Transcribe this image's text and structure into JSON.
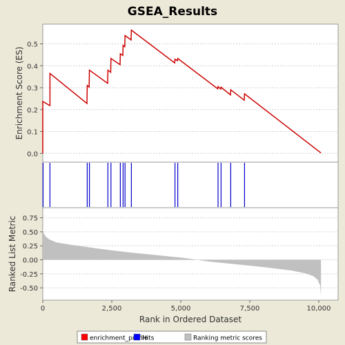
{
  "title": "GSEA_Results",
  "chart_data": [
    {
      "type": "line",
      "name": "enrichment_profile_panel",
      "ylabel": "Enrichment Score (ES)",
      "ylim": [
        -0.04,
        0.59
      ],
      "yticks": [
        "0.0",
        "0.1",
        "0.2",
        "0.3",
        "0.4",
        "0.5"
      ],
      "ytick_values": [
        0.0,
        0.1,
        0.2,
        0.3,
        0.4,
        0.5
      ],
      "color": "#cc0000",
      "points": [
        [
          0,
          0.0
        ],
        [
          0,
          0.237
        ],
        [
          260,
          0.218
        ],
        [
          260,
          0.365
        ],
        [
          1600,
          0.228
        ],
        [
          1610,
          0.31
        ],
        [
          1680,
          0.303
        ],
        [
          1690,
          0.38
        ],
        [
          2350,
          0.32
        ],
        [
          2360,
          0.38
        ],
        [
          2460,
          0.37
        ],
        [
          2470,
          0.433
        ],
        [
          2800,
          0.405
        ],
        [
          2810,
          0.455
        ],
        [
          2900,
          0.447
        ],
        [
          2910,
          0.493
        ],
        [
          2970,
          0.487
        ],
        [
          2980,
          0.538
        ],
        [
          3200,
          0.518
        ],
        [
          3210,
          0.563
        ],
        [
          4780,
          0.413
        ],
        [
          4790,
          0.43
        ],
        [
          4880,
          0.423
        ],
        [
          4890,
          0.433
        ],
        [
          6340,
          0.295
        ],
        [
          6350,
          0.305
        ],
        [
          6450,
          0.294
        ],
        [
          6460,
          0.302
        ],
        [
          6800,
          0.267
        ],
        [
          6810,
          0.29
        ],
        [
          7300,
          0.243
        ],
        [
          7310,
          0.272
        ],
        [
          10080,
          0.002
        ]
      ]
    },
    {
      "type": "hits",
      "name": "hits_panel",
      "color": "#0000cc",
      "hits": [
        10,
        260,
        1610,
        1690,
        2360,
        2470,
        2810,
        2910,
        2980,
        3210,
        4790,
        4890,
        6350,
        6460,
        6810,
        7310
      ]
    },
    {
      "type": "area",
      "name": "ranked_list_metric_panel",
      "ylabel": "Ranked List Metric",
      "xlabel": "Rank in Ordered Dataset",
      "xlim": [
        0,
        10700
      ],
      "ylim": [
        -0.72,
        0.93
      ],
      "xticks": [
        "0",
        "2,500",
        "5,000",
        "7,500",
        "10,000"
      ],
      "xtick_values": [
        0,
        2500,
        5000,
        7500,
        10000
      ],
      "yticks": [
        "0.75",
        "0.50",
        "0.25",
        "0.00",
        "-0.25",
        "-0.50"
      ],
      "ytick_values": [
        0.75,
        0.5,
        0.25,
        0.0,
        -0.25,
        -0.5
      ],
      "color": "#c0c0c0",
      "x": [
        0,
        20,
        60,
        120,
        250,
        500,
        1000,
        2000,
        3000,
        4000,
        5000,
        5600,
        6000,
        7000,
        8000,
        9000,
        9500,
        9800,
        9950,
        10050,
        10080
      ],
      "values": [
        0.58,
        0.5,
        0.45,
        0.41,
        0.36,
        0.31,
        0.27,
        0.2,
        0.14,
        0.09,
        0.04,
        0.0,
        -0.03,
        -0.08,
        -0.13,
        -0.19,
        -0.24,
        -0.29,
        -0.35,
        -0.46,
        -0.65
      ]
    }
  ],
  "legend": [
    {
      "label": "enrichment_profile",
      "color": "#ff0000"
    },
    {
      "label": "Hits",
      "color": "#0000ff"
    },
    {
      "label": "Ranking metric scores",
      "color": "#c0c0c0"
    }
  ]
}
